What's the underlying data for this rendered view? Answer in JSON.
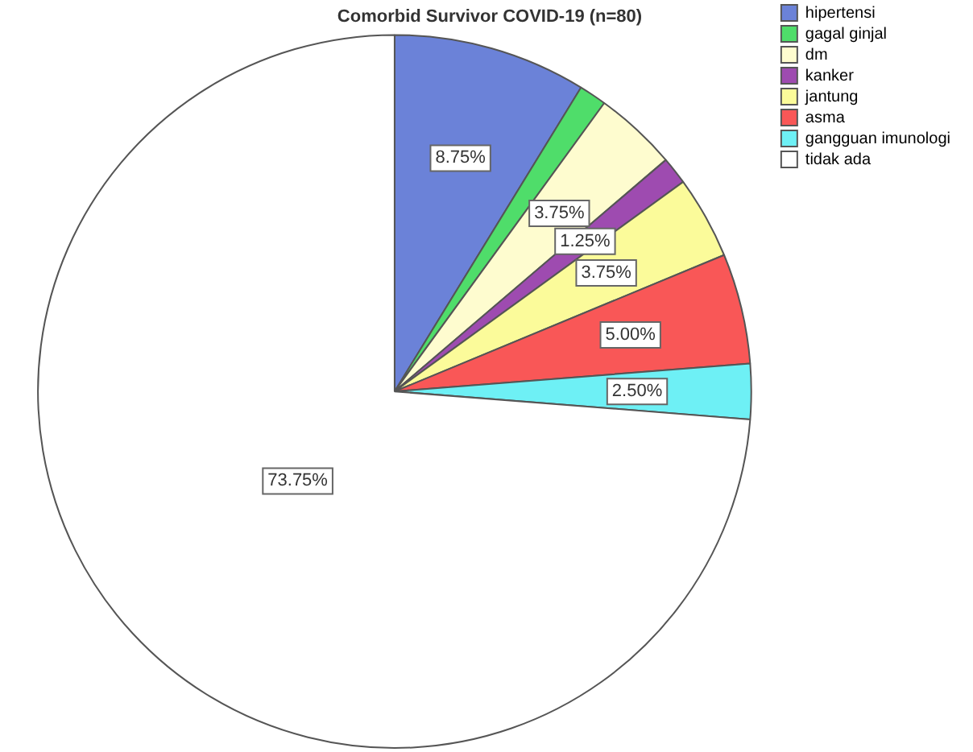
{
  "chart_data": {
    "type": "pie",
    "title": "Comorbid Survivor COVID-19 (n=80)",
    "categories": [
      "hipertensi",
      "gagal ginjal",
      "dm",
      "kanker",
      "jantung",
      "asma",
      "gangguan imunologi",
      "tidak ada"
    ],
    "values": [
      8.75,
      1.25,
      3.75,
      1.25,
      3.75,
      5.0,
      2.5,
      73.75
    ],
    "colors": [
      "#6b82d8",
      "#4fdd6a",
      "#fefccf",
      "#9e4bb0",
      "#fbfb9a",
      "#f95757",
      "#6ef0f5",
      "#ffffff"
    ],
    "value_labels": [
      "8.75%",
      null,
      "3.75%",
      "1.25%",
      "3.75%",
      "5.00%",
      "2.50%",
      "73.75%"
    ],
    "legend": "top right"
  }
}
